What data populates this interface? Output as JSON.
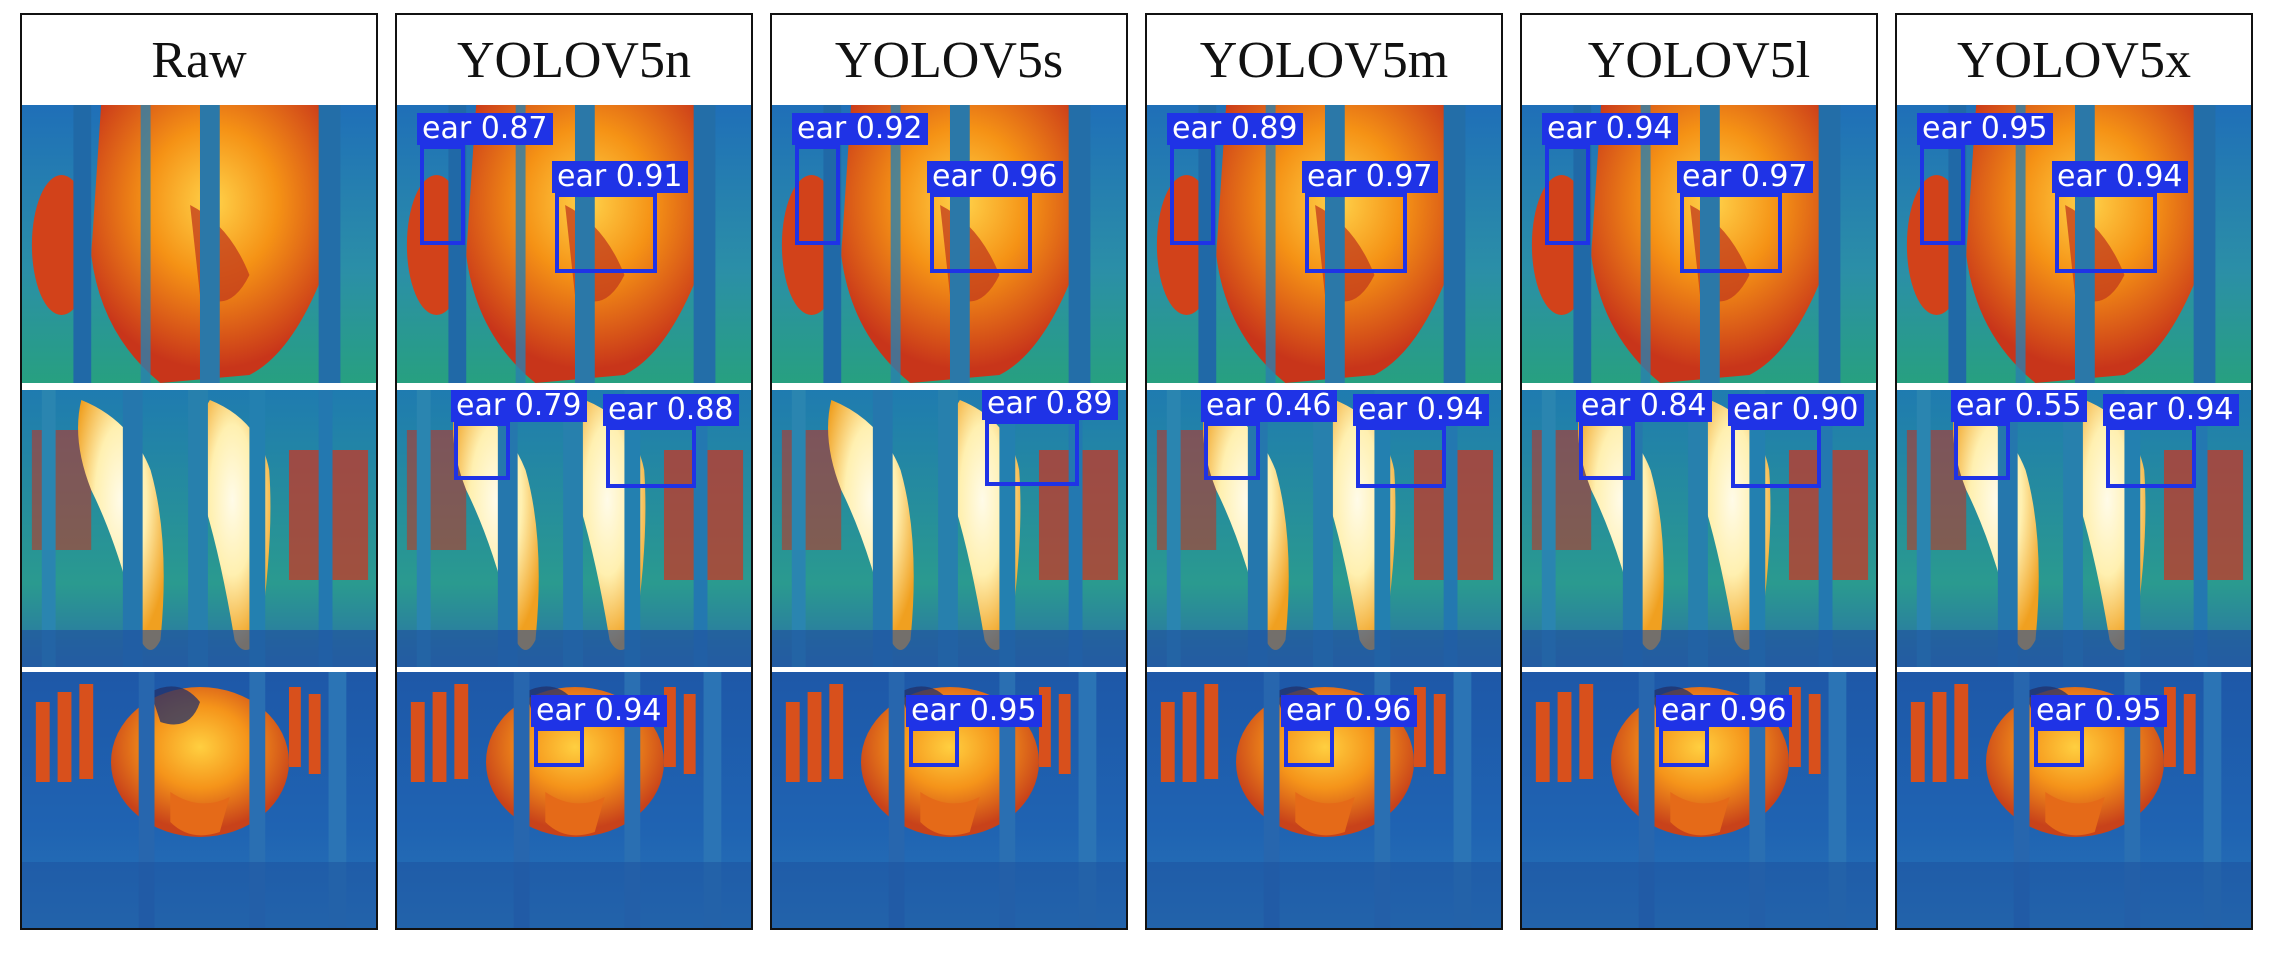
{
  "figure": {
    "columns": [
      {
        "title": "Raw",
        "rows": [
          {
            "detections": []
          },
          {
            "detections": []
          },
          {
            "detections": []
          }
        ]
      },
      {
        "title": "YOLOV5n",
        "rows": [
          {
            "detections": [
              {
                "label": "ear 0.87"
              },
              {
                "label": "ear 0.91"
              }
            ]
          },
          {
            "detections": [
              {
                "label": "ear 0.79"
              },
              {
                "label": "ear 0.88"
              }
            ]
          },
          {
            "detections": [
              {
                "label": "ear 0.94"
              }
            ]
          }
        ]
      },
      {
        "title": "YOLOV5s",
        "rows": [
          {
            "detections": [
              {
                "label": "ear 0.92"
              },
              {
                "label": "ear 0.96"
              }
            ]
          },
          {
            "detections": [
              {
                "label": "ear 0.89"
              }
            ]
          },
          {
            "detections": [
              {
                "label": "ear 0.95"
              }
            ]
          }
        ]
      },
      {
        "title": "YOLOV5m",
        "rows": [
          {
            "detections": [
              {
                "label": "ear 0.89"
              },
              {
                "label": "ear 0.97"
              }
            ]
          },
          {
            "detections": [
              {
                "label": "ear 0.46"
              },
              {
                "label": "ear 0.94"
              }
            ]
          },
          {
            "detections": [
              {
                "label": "ear 0.96"
              }
            ]
          }
        ]
      },
      {
        "title": "YOLOV5l",
        "rows": [
          {
            "detections": [
              {
                "label": "ear 0.94"
              },
              {
                "label": "ear 0.97"
              }
            ]
          },
          {
            "detections": [
              {
                "label": "ear 0.84"
              },
              {
                "label": "ear 0.90"
              }
            ]
          },
          {
            "detections": [
              {
                "label": "ear 0.96"
              }
            ]
          }
        ]
      },
      {
        "title": "YOLOV5x",
        "rows": [
          {
            "detections": [
              {
                "label": "ear 0.95"
              },
              {
                "label": "ear 0.94"
              }
            ]
          },
          {
            "detections": [
              {
                "label": "ear 0.55"
              },
              {
                "label": "ear 0.94"
              }
            ]
          },
          {
            "detections": [
              {
                "label": "ear 0.95"
              }
            ]
          }
        ]
      }
    ],
    "colors": {
      "box": "#1f33e6",
      "background_cool": "#1d63b3",
      "background_mid": "#2a9a9a",
      "hot": "#f08a12",
      "hottest": "#fff4c4"
    }
  }
}
